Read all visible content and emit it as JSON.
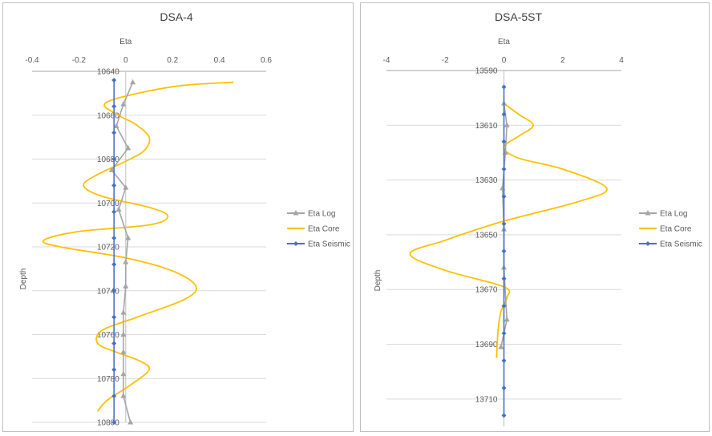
{
  "chart_data": [
    {
      "type": "line",
      "title": "DSA-4",
      "xlabel": "Eta",
      "ylabel": "Depth",
      "xlim": [
        -0.4,
        0.6
      ],
      "x_ticks": [
        "-0.4",
        "-0.2",
        "0",
        "0.2",
        "0.4",
        "0.6"
      ],
      "x_tick_values": [
        -0.4,
        -0.2,
        0,
        0.2,
        0.4,
        0.6
      ],
      "ylim": [
        10640,
        10800
      ],
      "y_reversed": true,
      "y_ticks": [
        "10640",
        "10660",
        "10680",
        "10700",
        "10720",
        "10740",
        "10760",
        "10780",
        "10800"
      ],
      "y_tick_values": [
        10640,
        10660,
        10680,
        10700,
        10720,
        10740,
        10760,
        10780,
        10800
      ],
      "grid": "horizontal",
      "legend_position": "right",
      "series": [
        {
          "name": "Eta Log",
          "color": "#a5a5a5",
          "marker": "triangle",
          "points": [
            [
              0.03,
              10645
            ],
            [
              -0.01,
              10655
            ],
            [
              -0.04,
              10665
            ],
            [
              0.01,
              10675
            ],
            [
              -0.06,
              10685
            ],
            [
              0.0,
              10693
            ],
            [
              -0.03,
              10703
            ],
            [
              0.01,
              10716
            ],
            [
              0.0,
              10727
            ],
            [
              0.0,
              10738
            ],
            [
              -0.01,
              10750
            ],
            [
              -0.01,
              10760
            ],
            [
              -0.01,
              10768
            ],
            [
              -0.01,
              10778
            ],
            [
              -0.01,
              10788
            ],
            [
              0.02,
              10800
            ]
          ]
        },
        {
          "name": "Eta Core",
          "color": "#ffc000",
          "marker": "none",
          "points": [
            [
              0.46,
              10645
            ],
            [
              0.2,
              10647
            ],
            [
              -0.08,
              10654
            ],
            [
              -0.03,
              10660
            ],
            [
              0.04,
              10664
            ],
            [
              0.1,
              10670
            ],
            [
              0.08,
              10676
            ],
            [
              0.0,
              10681
            ],
            [
              -0.12,
              10687
            ],
            [
              -0.18,
              10692
            ],
            [
              -0.1,
              10697
            ],
            [
              0.1,
              10702
            ],
            [
              0.18,
              10706
            ],
            [
              0.1,
              10710
            ],
            [
              -0.2,
              10713
            ],
            [
              -0.35,
              10717
            ],
            [
              -0.28,
              10720
            ],
            [
              0.0,
              10725
            ],
            [
              0.2,
              10731
            ],
            [
              0.3,
              10738
            ],
            [
              0.25,
              10744
            ],
            [
              0.05,
              10752
            ],
            [
              -0.1,
              10758
            ],
            [
              -0.12,
              10764
            ],
            [
              -0.04,
              10768
            ],
            [
              0.06,
              10772
            ],
            [
              0.1,
              10776
            ],
            [
              0.02,
              10783
            ],
            [
              -0.08,
              10790
            ],
            [
              -0.12,
              10795
            ]
          ]
        },
        {
          "name": "Eta Seismic",
          "color": "#4472c4",
          "marker": "diamond",
          "points": [
            [
              -0.05,
              10644
            ],
            [
              -0.05,
              10656
            ],
            [
              -0.05,
              10668
            ],
            [
              -0.05,
              10680
            ],
            [
              -0.05,
              10692
            ],
            [
              -0.05,
              10704
            ],
            [
              -0.05,
              10716
            ],
            [
              -0.05,
              10728
            ],
            [
              -0.05,
              10740
            ],
            [
              -0.05,
              10752
            ],
            [
              -0.05,
              10764
            ],
            [
              -0.05,
              10776
            ],
            [
              -0.05,
              10788
            ],
            [
              -0.05,
              10800
            ]
          ]
        }
      ]
    },
    {
      "type": "line",
      "title": "DSA-5ST",
      "xlabel": "Eta",
      "ylabel": "Depth",
      "xlim": [
        -4,
        4
      ],
      "x_ticks": [
        "-4",
        "-2",
        "0",
        "2",
        "4"
      ],
      "x_tick_values": [
        -4,
        -2,
        0,
        2,
        4
      ],
      "ylim": [
        13590,
        13720
      ],
      "y_reversed": true,
      "y_ticks": [
        "13590",
        "13610",
        "13630",
        "13650",
        "13670",
        "13690",
        "13710"
      ],
      "y_tick_values": [
        13590,
        13610,
        13630,
        13650,
        13670,
        13690,
        13710
      ],
      "grid": "horizontal",
      "legend_position": "right",
      "series": [
        {
          "name": "Eta Log",
          "color": "#a5a5a5",
          "marker": "triangle",
          "points": [
            [
              0.0,
              13602
            ],
            [
              0.1,
              13610
            ],
            [
              0.05,
              13620
            ],
            [
              -0.05,
              13633
            ],
            [
              0.0,
              13648
            ],
            [
              0.0,
              13662
            ],
            [
              0.1,
              13681
            ],
            [
              -0.1,
              13691
            ]
          ]
        },
        {
          "name": "Eta Core",
          "color": "#ffc000",
          "marker": "none",
          "points": [
            [
              0.0,
              13602
            ],
            [
              0.5,
              13606
            ],
            [
              1.0,
              13610
            ],
            [
              0.5,
              13614
            ],
            [
              0.0,
              13618
            ],
            [
              0.5,
              13622
            ],
            [
              2.0,
              13626
            ],
            [
              3.5,
              13633
            ],
            [
              2.5,
              13638
            ],
            [
              0.0,
              13645
            ],
            [
              -2.0,
              13652
            ],
            [
              -3.2,
              13657
            ],
            [
              -2.0,
              13663
            ],
            [
              0.0,
              13669
            ],
            [
              0.1,
              13673
            ],
            [
              -0.1,
              13678
            ],
            [
              -0.2,
              13685
            ],
            [
              -0.25,
              13695
            ]
          ]
        },
        {
          "name": "Eta Seismic",
          "color": "#4472c4",
          "marker": "diamond",
          "points": [
            [
              0,
              13596
            ],
            [
              0,
              13606
            ],
            [
              0,
              13616
            ],
            [
              0,
              13626
            ],
            [
              0,
              13636
            ],
            [
              0,
              13646
            ],
            [
              0,
              13656
            ],
            [
              0,
              13666
            ],
            [
              0,
              13676
            ],
            [
              0,
              13686
            ],
            [
              0,
              13696
            ],
            [
              0,
              13706
            ],
            [
              0,
              13716
            ]
          ]
        }
      ]
    }
  ]
}
